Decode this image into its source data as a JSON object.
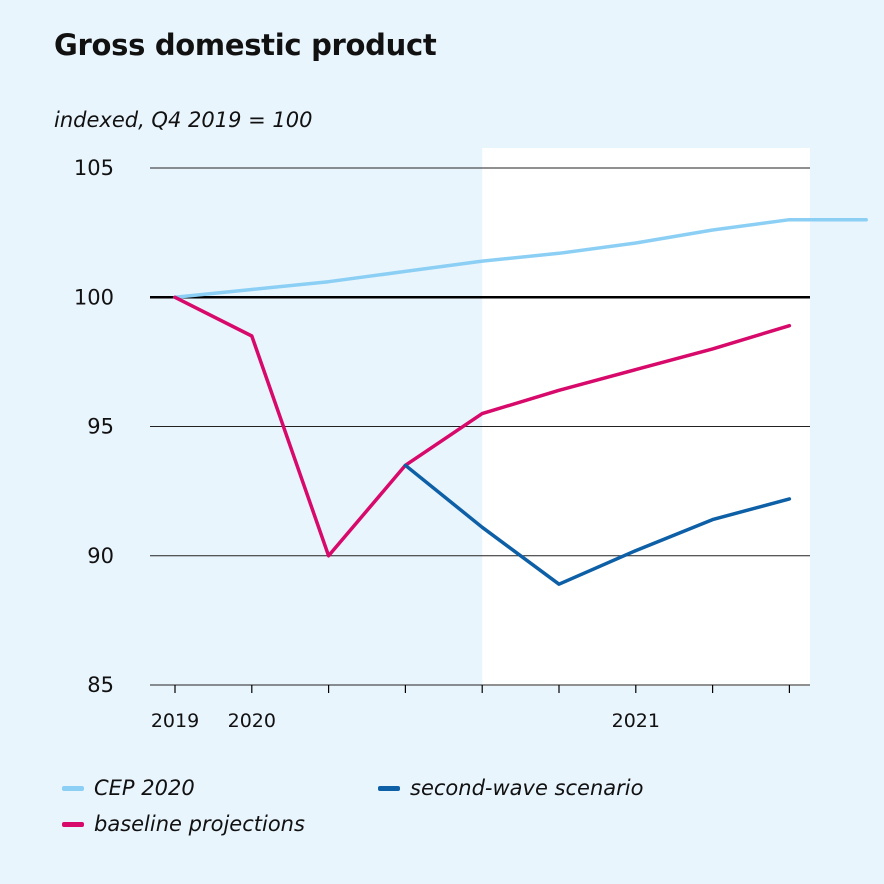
{
  "chart_data": {
    "type": "line",
    "title": "Gross domestic product",
    "subtitle": "indexed, Q4 2019 = 100",
    "xlabel": "",
    "ylabel": "",
    "ylim": [
      85,
      105
    ],
    "yticks": [
      85,
      90,
      95,
      100,
      105
    ],
    "x": [
      "2019Q4",
      "2020Q1",
      "2020Q2",
      "2020Q3",
      "2020Q4",
      "2021Q1",
      "2021Q2",
      "2021Q3",
      "2021Q4",
      "2022Q1"
    ],
    "x_tick_labels": [
      "2019",
      "2020",
      "",
      "",
      "",
      "",
      "2021",
      "",
      "",
      ""
    ],
    "projection_period_start": "2020Q4",
    "reference_line": 100,
    "grid": true,
    "legend_position": "bottom",
    "series": [
      {
        "name": "CEP 2020",
        "color": "#8ccff5",
        "values": [
          100,
          100.3,
          100.6,
          101.0,
          101.4,
          101.7,
          102.1,
          102.6,
          103.0,
          103.0
        ]
      },
      {
        "name": "baseline projections",
        "color": "#d7096b",
        "values": [
          100,
          98.5,
          90.0,
          93.5,
          95.5,
          96.4,
          97.2,
          98.0,
          98.9,
          null
        ]
      },
      {
        "name": "second-wave scenario",
        "color": "#0d5fa6",
        "values": [
          null,
          null,
          null,
          93.5,
          91.1,
          88.9,
          90.2,
          91.4,
          92.2,
          null
        ]
      }
    ]
  }
}
